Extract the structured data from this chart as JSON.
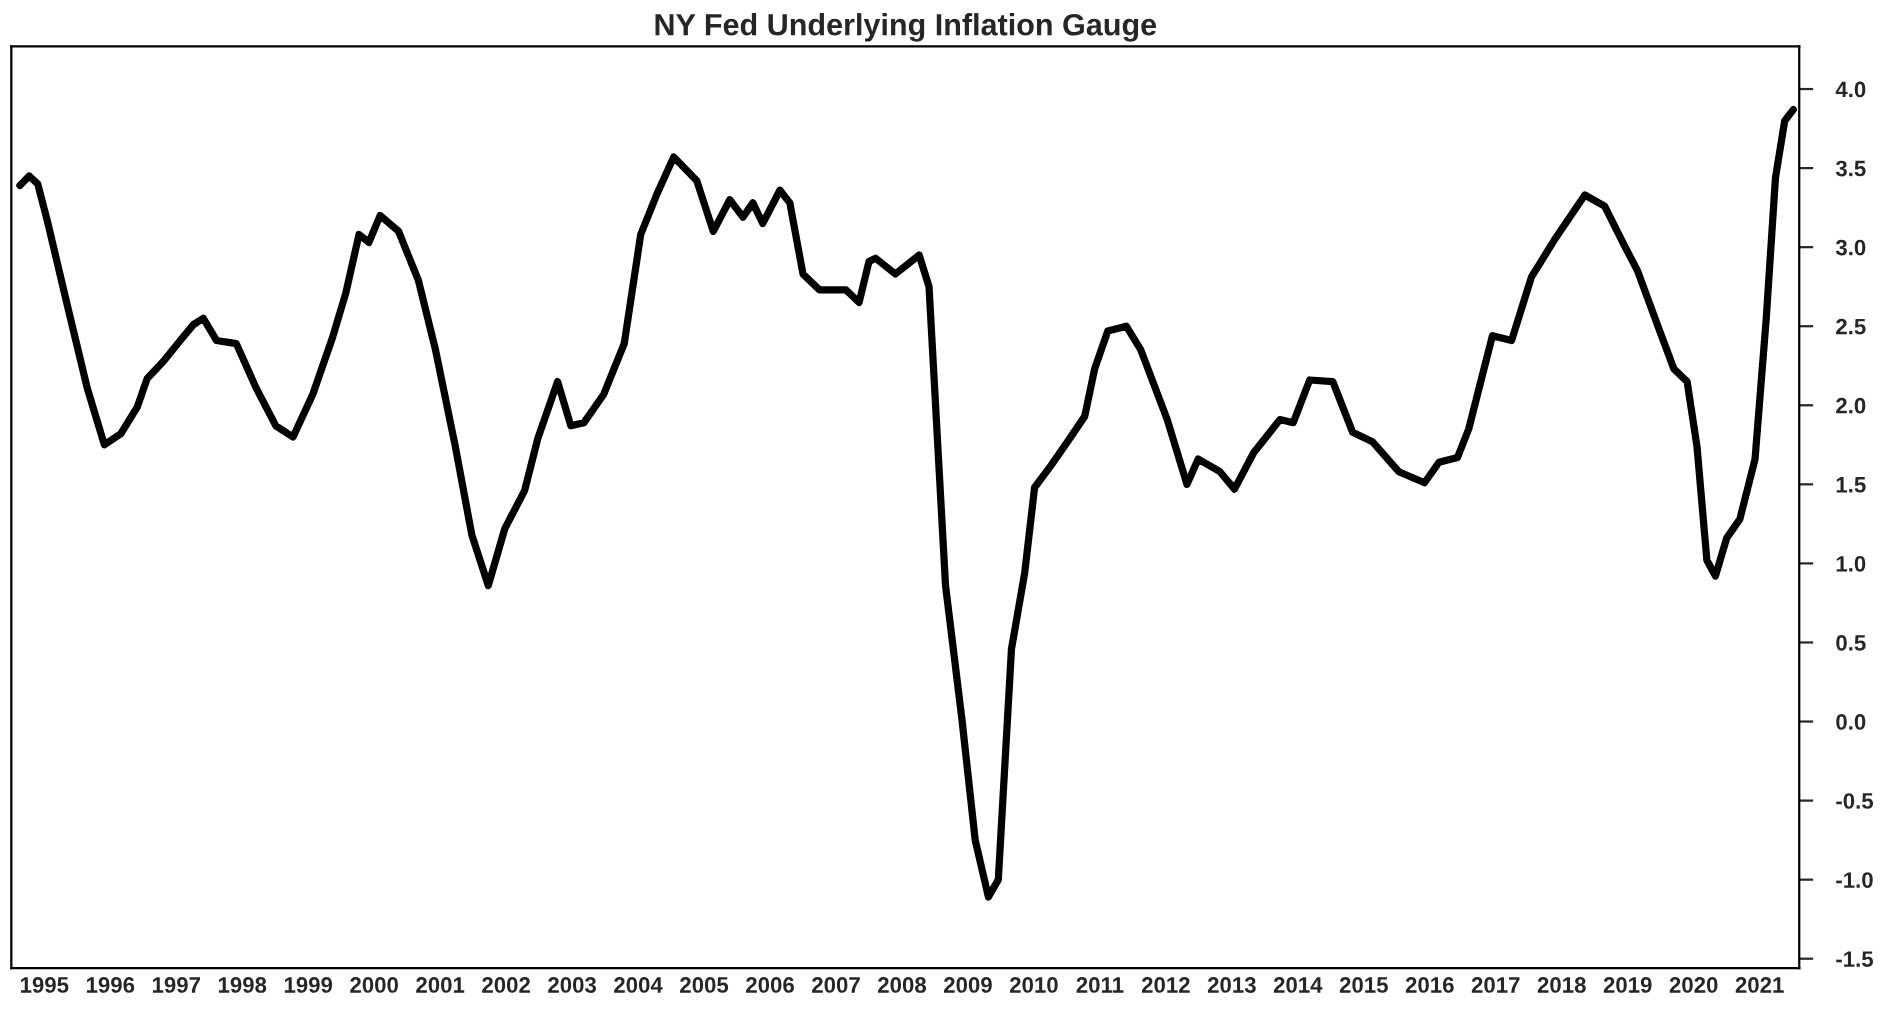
{
  "chart_data": {
    "type": "line",
    "title": "NY Fed Underlying Inflation Gauge",
    "x": [
      1995.13,
      1995.27,
      1995.4,
      1995.55,
      1995.85,
      1996.15,
      1996.41,
      1996.66,
      1996.91,
      1997.06,
      1997.31,
      1997.56,
      1997.76,
      1997.91,
      1998.11,
      1998.41,
      1998.71,
      1999.01,
      1999.27,
      1999.57,
      1999.87,
      2000.07,
      2000.27,
      2000.42,
      2000.59,
      2000.87,
      2001.17,
      2001.43,
      2001.73,
      2001.98,
      2002.23,
      2002.48,
      2002.78,
      2002.98,
      2003.28,
      2003.48,
      2003.68,
      2003.98,
      2004.29,
      2004.54,
      2004.79,
      2005.04,
      2005.39,
      2005.64,
      2005.89,
      2006.09,
      2006.24,
      2006.39,
      2006.65,
      2006.8,
      2007.0,
      2007.25,
      2007.65,
      2007.85,
      2008.0,
      2008.1,
      2008.4,
      2008.76,
      2008.91,
      2009.16,
      2009.41,
      2009.61,
      2009.81,
      2009.96,
      2010.16,
      2010.36,
      2010.51,
      2010.76,
      2011.01,
      2011.27,
      2011.42,
      2011.62,
      2011.9,
      2012.12,
      2012.52,
      2012.82,
      2012.99,
      2013.32,
      2013.54,
      2013.83,
      2014.23,
      2014.43,
      2014.68,
      2015.03,
      2015.33,
      2015.63,
      2016.03,
      2016.42,
      2016.64,
      2016.92,
      2017.09,
      2017.45,
      2017.74,
      2018.04,
      2018.38,
      2018.85,
      2019.15,
      2019.45,
      2019.65,
      2019.95,
      2020.2,
      2020.4,
      2020.55,
      2020.7,
      2020.83,
      2021.0,
      2021.2,
      2021.43,
      2021.6,
      2021.74,
      2021.88,
      2022.01
    ],
    "series": [
      {
        "color": "#000000",
        "values": [
          3.39,
          3.45,
          3.4,
          3.16,
          2.63,
          2.11,
          1.75,
          1.82,
          1.99,
          2.17,
          2.28,
          2.41,
          2.51,
          2.55,
          2.41,
          2.39,
          2.11,
          1.87,
          1.8,
          2.07,
          2.43,
          2.71,
          3.08,
          3.03,
          3.2,
          3.1,
          2.79,
          2.35,
          1.74,
          1.18,
          0.86,
          1.22,
          1.46,
          1.79,
          2.15,
          1.87,
          1.89,
          2.07,
          2.39,
          3.08,
          3.34,
          3.57,
          3.42,
          3.1,
          3.3,
          3.19,
          3.28,
          3.15,
          3.36,
          3.28,
          2.83,
          2.73,
          2.73,
          2.65,
          2.91,
          2.93,
          2.83,
          2.95,
          2.75,
          0.86,
          0.01,
          -0.75,
          -1.11,
          -1.0,
          0.46,
          0.94,
          1.48,
          1.62,
          1.77,
          1.93,
          2.23,
          2.47,
          2.5,
          2.35,
          1.91,
          1.5,
          1.66,
          1.58,
          1.47,
          1.7,
          1.91,
          1.89,
          2.16,
          2.15,
          1.83,
          1.77,
          1.58,
          1.51,
          1.64,
          1.67,
          1.85,
          2.44,
          2.41,
          2.81,
          3.04,
          3.33,
          3.26,
          3.01,
          2.85,
          2.51,
          2.23,
          2.15,
          1.74,
          1.02,
          0.92,
          1.16,
          1.28,
          1.66,
          2.55,
          3.44,
          3.8,
          3.87
        ]
      }
    ],
    "xlim": [
      1995.0,
      2022.1
    ],
    "xticks": [
      {
        "value": 1995.5,
        "label": "1995"
      },
      {
        "value": 1996.5,
        "label": "1996"
      },
      {
        "value": 1997.5,
        "label": "1997"
      },
      {
        "value": 1998.5,
        "label": "1998"
      },
      {
        "value": 1999.5,
        "label": "1999"
      },
      {
        "value": 2000.5,
        "label": "2000"
      },
      {
        "value": 2001.5,
        "label": "2001"
      },
      {
        "value": 2002.5,
        "label": "2002"
      },
      {
        "value": 2003.5,
        "label": "2003"
      },
      {
        "value": 2004.5,
        "label": "2004"
      },
      {
        "value": 2005.5,
        "label": "2005"
      },
      {
        "value": 2006.5,
        "label": "2006"
      },
      {
        "value": 2007.5,
        "label": "2007"
      },
      {
        "value": 2008.5,
        "label": "2008"
      },
      {
        "value": 2009.5,
        "label": "2009"
      },
      {
        "value": 2010.5,
        "label": "2010"
      },
      {
        "value": 2011.5,
        "label": "2011"
      },
      {
        "value": 2012.5,
        "label": "2012"
      },
      {
        "value": 2013.5,
        "label": "2013"
      },
      {
        "value": 2014.5,
        "label": "2014"
      },
      {
        "value": 2015.5,
        "label": "2015"
      },
      {
        "value": 2016.5,
        "label": "2016"
      },
      {
        "value": 2017.5,
        "label": "2017"
      },
      {
        "value": 2018.5,
        "label": "2018"
      },
      {
        "value": 2019.5,
        "label": "2019"
      },
      {
        "value": 2020.5,
        "label": "2020"
      },
      {
        "value": 2021.5,
        "label": "2021"
      }
    ],
    "ylim": [
      -1.56,
      4.27
    ],
    "yticks": [
      {
        "value": -1.5,
        "label": "-1.5"
      },
      {
        "value": -1.0,
        "label": "-1.0"
      },
      {
        "value": -0.5,
        "label": "-0.5"
      },
      {
        "value": 0.0,
        "label": "0.0"
      },
      {
        "value": 0.5,
        "label": "0.5"
      },
      {
        "value": 1.0,
        "label": "1.0"
      },
      {
        "value": 1.5,
        "label": "1.5"
      },
      {
        "value": 2.0,
        "label": "2.0"
      },
      {
        "value": 2.5,
        "label": "2.5"
      },
      {
        "value": 3.0,
        "label": "3.0"
      },
      {
        "value": 3.5,
        "label": "3.5"
      },
      {
        "value": 4.0,
        "label": "4.0"
      }
    ],
    "grid": false,
    "marker": "none",
    "line_style": "solid"
  }
}
